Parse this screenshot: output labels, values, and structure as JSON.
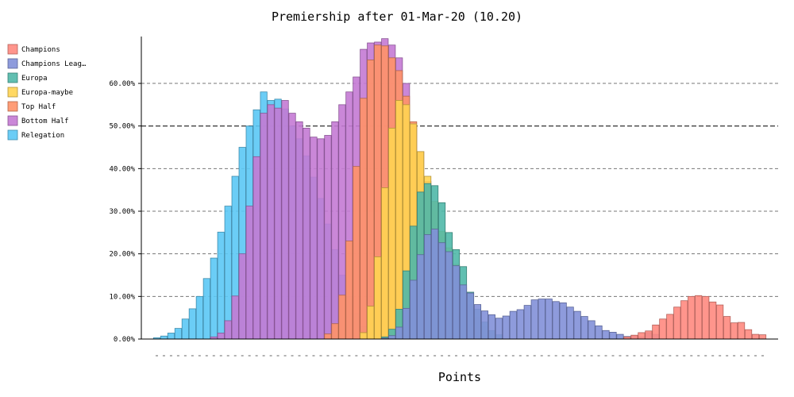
{
  "chart_data": {
    "type": "bar",
    "stacked": false,
    "overlapping": true,
    "title": "Premiership after 01-Mar-20 (10.20)",
    "xlabel": "Points",
    "ylabel": "",
    "ylim": [
      0,
      0.71
    ],
    "yticks": [
      0,
      0.1,
      0.2,
      0.3,
      0.4,
      0.5,
      0.6
    ],
    "ytick_labels": [
      "0.00%",
      "10.00%",
      "20.00%",
      "30.00%",
      "40.00%",
      "50.00%",
      "60.00%"
    ],
    "x_count": 86,
    "grid": true,
    "legend_position": "top-left",
    "series": [
      {
        "name": "Relegation",
        "legend_label": "Relegation",
        "color": "#5bc8f5",
        "start": 0,
        "values": [
          0.003,
          0.007,
          0.014,
          0.025,
          0.047,
          0.071,
          0.1,
          0.142,
          0.19,
          0.251,
          0.312,
          0.382,
          0.45,
          0.5,
          0.538,
          0.58,
          0.56,
          0.563,
          0.54,
          0.5,
          0.47,
          0.43,
          0.38,
          0.33,
          0.27,
          0.21,
          0.15,
          0.1,
          0.06,
          0.03,
          0.01
        ]
      },
      {
        "name": "Bottom Half",
        "legend_label": "Bottom Half",
        "color": "#c47ad4",
        "start": 8,
        "values": [
          0.005,
          0.014,
          0.043,
          0.101,
          0.2,
          0.312,
          0.428,
          0.53,
          0.55,
          0.542,
          0.56,
          0.53,
          0.51,
          0.495,
          0.474,
          0.47,
          0.478,
          0.51,
          0.55,
          0.58,
          0.615,
          0.68,
          0.695,
          0.697,
          0.705,
          0.69,
          0.66,
          0.6,
          0.5,
          0.38,
          0.26,
          0.15,
          0.07,
          0.03,
          0.01
        ]
      },
      {
        "name": "Top Half",
        "legend_label": "Top Half",
        "color": "#ff9268",
        "start": 24,
        "values": [
          0.012,
          0.036,
          0.103,
          0.23,
          0.405,
          0.565,
          0.655,
          0.69,
          0.688,
          0.66,
          0.63,
          0.57,
          0.51,
          0.44,
          0.37,
          0.3,
          0.24,
          0.18,
          0.13,
          0.09,
          0.06,
          0.04,
          0.02,
          0.01
        ]
      },
      {
        "name": "Europa-maybe",
        "legend_label": "Europa-maybe",
        "color": "#ffd452",
        "start": 29,
        "values": [
          0.015,
          0.077,
          0.193,
          0.355,
          0.495,
          0.56,
          0.55,
          0.505,
          0.44,
          0.382,
          0.323,
          0.253,
          0.214,
          0.175,
          0.12,
          0.08,
          0.05,
          0.03,
          0.015
        ]
      },
      {
        "name": "Europa",
        "legend_label": "Europa",
        "color": "#50b8a8",
        "start": 32,
        "values": [
          0.005,
          0.023,
          0.07,
          0.16,
          0.265,
          0.345,
          0.365,
          0.36,
          0.32,
          0.25,
          0.21,
          0.17,
          0.11,
          0.07,
          0.04,
          0.02,
          0.01
        ]
      },
      {
        "name": "Champions League",
        "legend_label": "Champions Leag…",
        "color": "#8290d8",
        "start": 32,
        "values": [
          0.002,
          0.008,
          0.028,
          0.072,
          0.138,
          0.198,
          0.245,
          0.258,
          0.226,
          0.205,
          0.172,
          0.127,
          0.108,
          0.081,
          0.066,
          0.057,
          0.049,
          0.054,
          0.065,
          0.069,
          0.079,
          0.092,
          0.094,
          0.094,
          0.088,
          0.085,
          0.075,
          0.065,
          0.053,
          0.043,
          0.031,
          0.02,
          0.016,
          0.011,
          0.006,
          0.008,
          0.005,
          0.015,
          0.011
        ]
      },
      {
        "name": "Champions",
        "legend_label": "Champions",
        "color": "#ff8a80",
        "start": 66,
        "values": [
          0.005,
          0.009,
          0.015,
          0.019,
          0.033,
          0.047,
          0.058,
          0.075,
          0.09,
          0.1,
          0.102,
          0.1,
          0.087,
          0.08,
          0.053,
          0.038,
          0.039,
          0.022,
          0.011,
          0.01
        ]
      }
    ],
    "legend_order": [
      "Champions",
      "Champions League",
      "Europa",
      "Europa-maybe",
      "Top Half",
      "Bottom Half",
      "Relegation"
    ]
  }
}
